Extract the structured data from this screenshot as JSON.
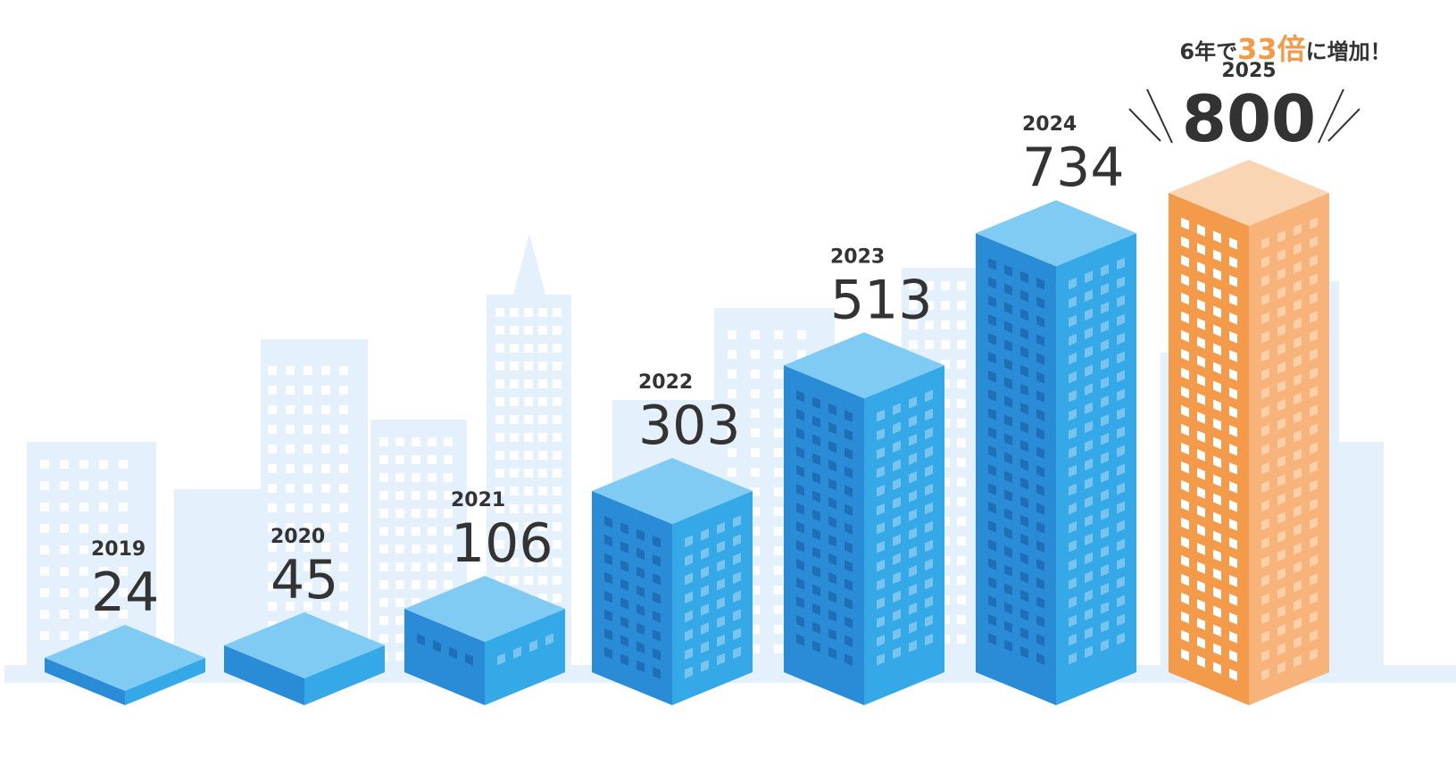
{
  "headline": {
    "prefix": "6年で",
    "highlight": "33倍",
    "suffix": "に増加！"
  },
  "colors": {
    "highlight": "#f39a4b",
    "building_top": "#7fcbf3",
    "building_left": "#2a8bd6",
    "building_right": "#35a9e8",
    "skyline": "#e4f0fb",
    "text": "#333333"
  },
  "chart_data": {
    "type": "bar",
    "categories": [
      "2019",
      "2020",
      "2021",
      "2022",
      "2023",
      "2024",
      "2025"
    ],
    "values": [
      24,
      45,
      106,
      303,
      513,
      734,
      800
    ],
    "highlight_index": 6,
    "title": "",
    "xlabel": "",
    "ylabel": ""
  }
}
